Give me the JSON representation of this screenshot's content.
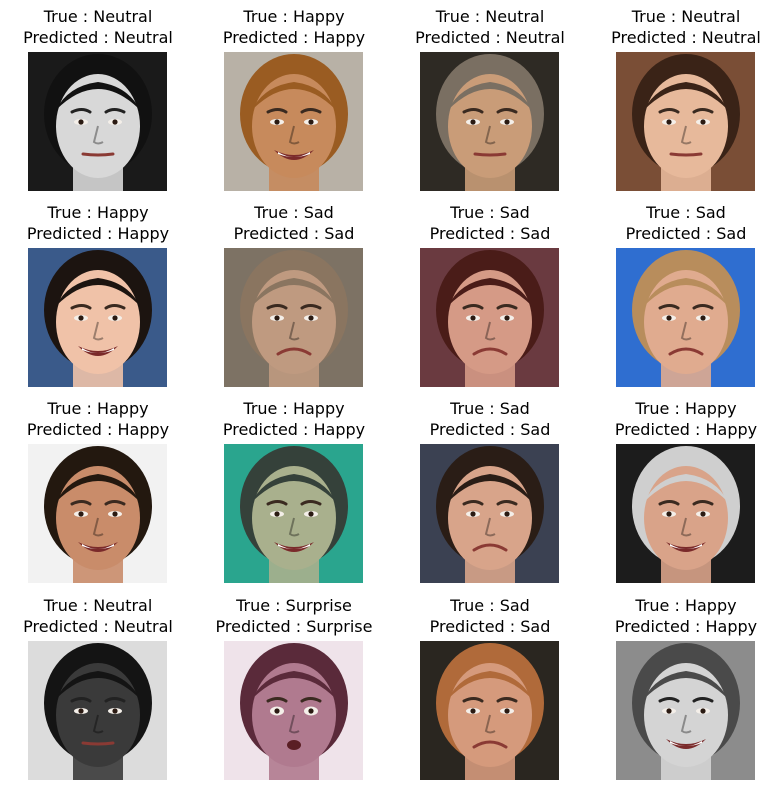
{
  "figure": {
    "panels": [
      {
        "true_text": "True : Neutral",
        "pred_text": "Predicted : Neutral",
        "true_label": "Neutral",
        "predicted_label": "Neutral",
        "bg": "#1a1a1a",
        "skin": "#d8d8d8",
        "hair": "#111111",
        "grayscale": true
      },
      {
        "true_text": "True : Happy",
        "pred_text": "Predicted : Happy",
        "true_label": "Happy",
        "predicted_label": "Happy",
        "bg": "#b8b1a6",
        "skin": "#c78a5c",
        "hair": "#9a5c22",
        "grayscale": false
      },
      {
        "true_text": "True : Neutral",
        "pred_text": "Predicted : Neutral",
        "true_label": "Neutral",
        "predicted_label": "Neutral",
        "bg": "#2e2a24",
        "skin": "#c99c78",
        "hair": "#7a6f62",
        "grayscale": false
      },
      {
        "true_text": "True : Neutral",
        "pred_text": "Predicted : Neutral",
        "true_label": "Neutral",
        "predicted_label": "Neutral",
        "bg": "#7a4e36",
        "skin": "#e7b99b",
        "hair": "#3a2317",
        "grayscale": false
      },
      {
        "true_text": "True : Happy",
        "pred_text": "Predicted : Happy",
        "true_label": "Happy",
        "predicted_label": "Happy",
        "bg": "#3a5a8a",
        "skin": "#f0c2a8",
        "hair": "#1c1410",
        "grayscale": false
      },
      {
        "true_text": "True : Sad",
        "pred_text": "Predicted : Sad",
        "true_label": "Sad",
        "predicted_label": "Sad",
        "bg": "#7d7264",
        "skin": "#bf9a80",
        "hair": "#8a7560",
        "grayscale": false
      },
      {
        "true_text": "True : Sad",
        "pred_text": "Predicted : Sad",
        "true_label": "Sad",
        "predicted_label": "Sad",
        "bg": "#6a3a40",
        "skin": "#d59a86",
        "hair": "#4a1c18",
        "grayscale": false
      },
      {
        "true_text": "True : Sad",
        "pred_text": "Predicted : Sad",
        "true_label": "Sad",
        "predicted_label": "Sad",
        "bg": "#2f6ed0",
        "skin": "#e0ab8f",
        "hair": "#b88d5c",
        "grayscale": false
      },
      {
        "true_text": "True : Happy",
        "pred_text": "Predicted : Happy",
        "true_label": "Happy",
        "predicted_label": "Happy",
        "bg": "#f2f2f2",
        "skin": "#c98c6a",
        "hair": "#23180f",
        "grayscale": false
      },
      {
        "true_text": "True : Happy",
        "pred_text": "Predicted : Happy",
        "true_label": "Happy",
        "predicted_label": "Happy",
        "bg": "#2aa58e",
        "skin": "#a9b08d",
        "hair": "#35413a",
        "grayscale": false
      },
      {
        "true_text": "True : Sad",
        "pred_text": "Predicted : Sad",
        "true_label": "Sad",
        "predicted_label": "Sad",
        "bg": "#3b4152",
        "skin": "#d8a48a",
        "hair": "#2a1d16",
        "grayscale": false
      },
      {
        "true_text": "True : Happy",
        "pred_text": "Predicted : Happy",
        "true_label": "Happy",
        "predicted_label": "Happy",
        "bg": "#1c1c1c",
        "skin": "#d9a389",
        "hair": "#cfcfcf",
        "grayscale": false
      },
      {
        "true_text": "True : Neutral",
        "pred_text": "Predicted : Neutral",
        "true_label": "Neutral",
        "predicted_label": "Neutral",
        "bg": "#dcdcdc",
        "skin": "#3a3a3a",
        "hair": "#141414",
        "grayscale": true
      },
      {
        "true_text": "True : Surprise",
        "pred_text": "Predicted : Surprise",
        "true_label": "Surprise",
        "predicted_label": "Surprise",
        "bg": "#efe3ea",
        "skin": "#b07a8f",
        "hair": "#5a2a3a",
        "grayscale": false
      },
      {
        "true_text": "True : Sad",
        "pred_text": "Predicted : Sad",
        "true_label": "Sad",
        "predicted_label": "Sad",
        "bg": "#2a2620",
        "skin": "#d59a7c",
        "hair": "#b06a3a",
        "grayscale": false
      },
      {
        "true_text": "True : Happy",
        "pred_text": "Predicted : Happy",
        "true_label": "Happy",
        "predicted_label": "Happy",
        "bg": "#8c8c8c",
        "skin": "#d4d4d4",
        "hair": "#4a4a4a",
        "grayscale": true
      }
    ]
  },
  "chart_data": {
    "type": "image_grid",
    "rows": 4,
    "cols": 4,
    "panels": [
      {
        "true": "Neutral",
        "predicted": "Neutral"
      },
      {
        "true": "Happy",
        "predicted": "Happy"
      },
      {
        "true": "Neutral",
        "predicted": "Neutral"
      },
      {
        "true": "Neutral",
        "predicted": "Neutral"
      },
      {
        "true": "Happy",
        "predicted": "Happy"
      },
      {
        "true": "Sad",
        "predicted": "Sad"
      },
      {
        "true": "Sad",
        "predicted": "Sad"
      },
      {
        "true": "Sad",
        "predicted": "Sad"
      },
      {
        "true": "Happy",
        "predicted": "Happy"
      },
      {
        "true": "Happy",
        "predicted": "Happy"
      },
      {
        "true": "Sad",
        "predicted": "Sad"
      },
      {
        "true": "Happy",
        "predicted": "Happy"
      },
      {
        "true": "Neutral",
        "predicted": "Neutral"
      },
      {
        "true": "Surprise",
        "predicted": "Surprise"
      },
      {
        "true": "Sad",
        "predicted": "Sad"
      },
      {
        "true": "Happy",
        "predicted": "Happy"
      }
    ]
  }
}
